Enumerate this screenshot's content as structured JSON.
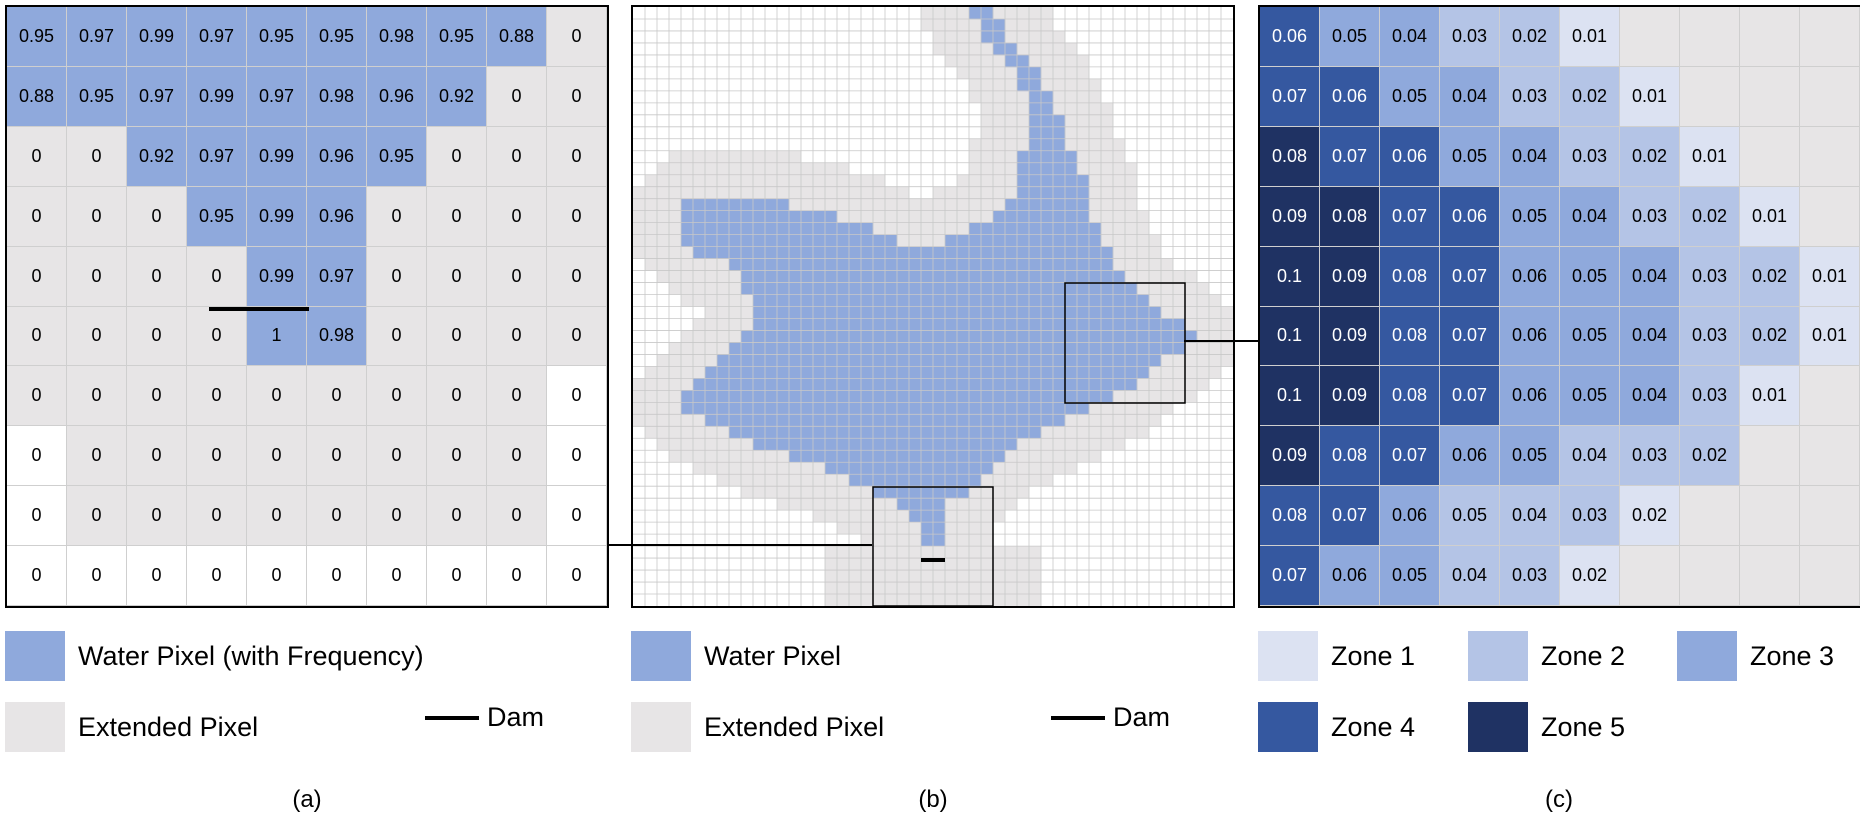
{
  "panel_a": {
    "values": [
      [
        "0.95",
        "0.97",
        "0.99",
        "0.97",
        "0.95",
        "0.95",
        "0.98",
        "0.95",
        "0.88",
        "0"
      ],
      [
        "0.88",
        "0.95",
        "0.97",
        "0.99",
        "0.97",
        "0.98",
        "0.96",
        "0.92",
        "0",
        "0"
      ],
      [
        "0",
        "0",
        "0.92",
        "0.97",
        "0.99",
        "0.96",
        "0.95",
        "0",
        "0",
        "0"
      ],
      [
        "0",
        "0",
        "0",
        "0.95",
        "0.99",
        "0.96",
        "0",
        "0",
        "0",
        "0"
      ],
      [
        "0",
        "0",
        "0",
        "0",
        "0.99",
        "0.97",
        "0",
        "0",
        "0",
        "0"
      ],
      [
        "0",
        "0",
        "0",
        "0",
        "1",
        "0.98",
        "0",
        "0",
        "0",
        "0"
      ],
      [
        "0",
        "0",
        "0",
        "0",
        "0",
        "0",
        "0",
        "0",
        "0",
        "0"
      ],
      [
        "0",
        "0",
        "0",
        "0",
        "0",
        "0",
        "0",
        "0",
        "0",
        "0"
      ],
      [
        "0",
        "0",
        "0",
        "0",
        "0",
        "0",
        "0",
        "0",
        "0",
        "0"
      ],
      [
        "0",
        "0",
        "0",
        "0",
        "0",
        "0",
        "0",
        "0",
        "0",
        "0"
      ]
    ],
    "types": [
      "wwwwwwwwwe",
      "wwwwwwwwee",
      "eewwwwweee",
      "eeewwweeee",
      "eeeewweeee",
      "eeeewweeee",
      "eeeeeeeeen",
      "neeeeeeeen",
      "neeeeeeeen",
      "nnnnnnnnnn"
    ]
  },
  "panel_b": {
    "grid_size": 50,
    "water_spans": [
      [
        [
          28,
          29
        ]
      ],
      [
        [
          29,
          30
        ]
      ],
      [
        [
          29,
          30
        ]
      ],
      [
        [
          30,
          31
        ]
      ],
      [
        [
          31,
          32
        ]
      ],
      [
        [
          32,
          33
        ]
      ],
      [
        [
          32,
          33
        ]
      ],
      [
        [
          33,
          34
        ]
      ],
      [
        [
          33,
          34
        ]
      ],
      [
        [
          33,
          35
        ]
      ],
      [
        [
          33,
          35
        ]
      ],
      [
        [
          33,
          35
        ]
      ],
      [
        [
          32,
          36
        ]
      ],
      [
        [
          32,
          36
        ]
      ],
      [
        [
          32,
          37
        ]
      ],
      [
        [
          32,
          37
        ]
      ],
      [
        [
          4,
          12
        ],
        [
          31,
          37
        ]
      ],
      [
        [
          4,
          16
        ],
        [
          30,
          37
        ]
      ],
      [
        [
          4,
          19
        ],
        [
          28,
          38
        ]
      ],
      [
        [
          4,
          21
        ],
        [
          26,
          38
        ]
      ],
      [
        [
          5,
          23
        ],
        [
          24,
          39
        ]
      ],
      [
        [
          8,
          39
        ]
      ],
      [
        [
          9,
          40
        ]
      ],
      [
        [
          9,
          41
        ]
      ],
      [
        [
          10,
          42
        ]
      ],
      [
        [
          10,
          43
        ]
      ],
      [
        [
          10,
          45
        ]
      ],
      [
        [
          9,
          46
        ]
      ],
      [
        [
          8,
          45
        ]
      ],
      [
        [
          7,
          43
        ]
      ],
      [
        [
          6,
          42
        ]
      ],
      [
        [
          5,
          41
        ]
      ],
      [
        [
          4,
          39
        ]
      ],
      [
        [
          4,
          37
        ]
      ],
      [
        [
          6,
          35
        ]
      ],
      [
        [
          8,
          33
        ]
      ],
      [
        [
          10,
          31
        ]
      ],
      [
        [
          13,
          30
        ]
      ],
      [
        [
          16,
          29
        ]
      ],
      [
        [
          18,
          28
        ]
      ],
      [
        [
          20,
          27
        ]
      ],
      [
        [
          22,
          25
        ]
      ],
      [
        [
          23,
          25
        ]
      ],
      [
        [
          24,
          25
        ]
      ],
      [
        [
          24,
          25
        ]
      ],
      []
    ],
    "dam_label": ""
  },
  "panel_c": {
    "values": [
      [
        "0.06",
        "0.05",
        "0.04",
        "0.03",
        "0.02",
        "0.01",
        "",
        "",
        "",
        ""
      ],
      [
        "0.07",
        "0.06",
        "0.05",
        "0.04",
        "0.03",
        "0.02",
        "0.01",
        "",
        "",
        ""
      ],
      [
        "0.08",
        "0.07",
        "0.06",
        "0.05",
        "0.04",
        "0.03",
        "0.02",
        "0.01",
        "",
        ""
      ],
      [
        "0.09",
        "0.08",
        "0.07",
        "0.06",
        "0.05",
        "0.04",
        "0.03",
        "0.02",
        "0.01",
        ""
      ],
      [
        "0.1",
        "0.09",
        "0.08",
        "0.07",
        "0.06",
        "0.05",
        "0.04",
        "0.03",
        "0.02",
        "0.01"
      ],
      [
        "0.1",
        "0.09",
        "0.08",
        "0.07",
        "0.06",
        "0.05",
        "0.04",
        "0.03",
        "0.02",
        "0.01"
      ],
      [
        "0.1",
        "0.09",
        "0.08",
        "0.07",
        "0.06",
        "0.05",
        "0.04",
        "0.03",
        "0.01",
        ""
      ],
      [
        "0.09",
        "0.08",
        "0.07",
        "0.06",
        "0.05",
        "0.04",
        "0.03",
        "0.02",
        "",
        ""
      ],
      [
        "0.08",
        "0.07",
        "0.06",
        "0.05",
        "0.04",
        "0.03",
        "0.02",
        "",
        "",
        ""
      ],
      [
        "0.07",
        "0.06",
        "0.05",
        "0.04",
        "0.03",
        "0.02",
        "",
        "",
        "",
        ""
      ]
    ],
    "zones": [
      "4332210000",
      "4433221000",
      "5443322100",
      "5544332210",
      "5544333221",
      "5544333221",
      "5544333210",
      "5443322200",
      "4432221000",
      "4332210000"
    ]
  },
  "legend_a": {
    "water": "Water Pixel (with Frequency)",
    "extended": "Extended Pixel",
    "dam": "Dam"
  },
  "legend_b": {
    "water": "Water Pixel",
    "extended": "Extended Pixel",
    "dam": "Dam"
  },
  "legend_c": {
    "zone1": "Zone 1",
    "zone2": "Zone 2",
    "zone3": "Zone 3",
    "zone4": "Zone 4",
    "zone5": "Zone 5"
  },
  "captions": {
    "a": "(a)",
    "b": "(b)",
    "c": "(c)"
  },
  "colors": {
    "water": "#8fa9dc",
    "extended": "#e7e5e6",
    "zone1": "#dce2f2",
    "zone2": "#b4c4e6",
    "zone3": "#8fa9dc",
    "zone4": "#3558a0",
    "zone5": "#1f3263"
  }
}
